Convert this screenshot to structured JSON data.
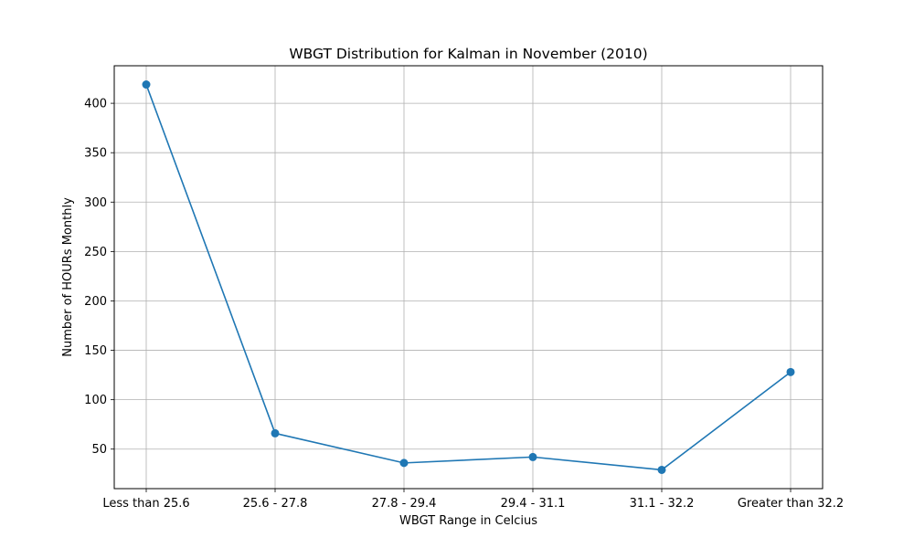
{
  "chart_data": {
    "type": "line",
    "title": "WBGT Distribution for Kalman in November (2010)",
    "xlabel": "WBGT Range in Celcius",
    "ylabel": "Number of HOURs Monthly",
    "categories": [
      "Less than 25.6",
      "25.6 - 27.8",
      "27.8 - 29.4",
      "29.4 - 31.1",
      "31.1 - 32.2",
      "Greater than 32.2"
    ],
    "series": [
      {
        "values": [
          419,
          66,
          36,
          42,
          29,
          128
        ],
        "color": "#1f77b4",
        "marker": "circle"
      }
    ],
    "ylim": [
      10,
      438
    ],
    "yticks": [
      50,
      100,
      150,
      200,
      250,
      300,
      350,
      400
    ],
    "ytick_labels": [
      "50",
      "100",
      "150",
      "200",
      "250",
      "300",
      "350",
      "400"
    ],
    "grid": true
  }
}
